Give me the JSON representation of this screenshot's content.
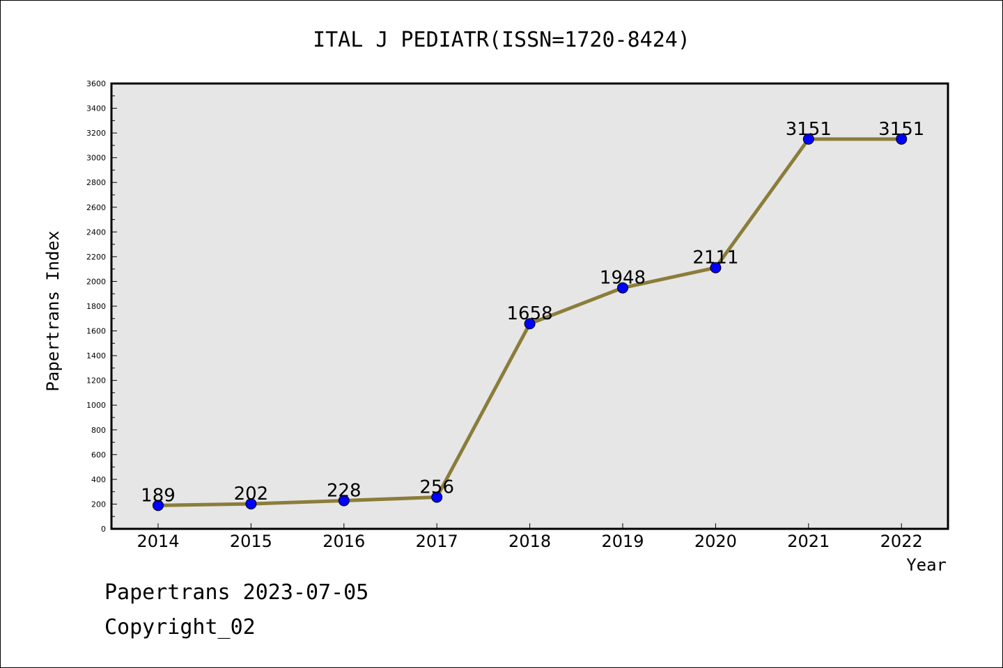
{
  "chart_data": {
    "type": "line",
    "title": "ITAL J PEDIATR(ISSN=1720-8424)",
    "xlabel": "Year",
    "ylabel": "Papertrans Index",
    "categories": [
      "2014",
      "2015",
      "2016",
      "2017",
      "2018",
      "2019",
      "2020",
      "2021",
      "2022"
    ],
    "series": [
      {
        "values": [
          189,
          202,
          228,
          256,
          1658,
          1948,
          2111,
          3151,
          3151
        ]
      }
    ],
    "data_labels": [
      "189",
      "202",
      "228",
      "256",
      "1658",
      "1948",
      "2111",
      "3151",
      "3151"
    ],
    "ylim": [
      0,
      3600
    ],
    "yticks": [
      0,
      200,
      400,
      600,
      800,
      1000,
      1200,
      1400,
      1600,
      1800,
      2000,
      2200,
      2400,
      2600,
      2800,
      3000,
      3200,
      3400,
      3600
    ],
    "grid": false,
    "legend": "none",
    "colors": {
      "line": "#8b7d3a",
      "marker": "#0000ff",
      "plot_bg": "#e6e6e6"
    }
  },
  "footer": {
    "line1": "Papertrans 2023-07-05",
    "line2": "Copyright_02"
  }
}
